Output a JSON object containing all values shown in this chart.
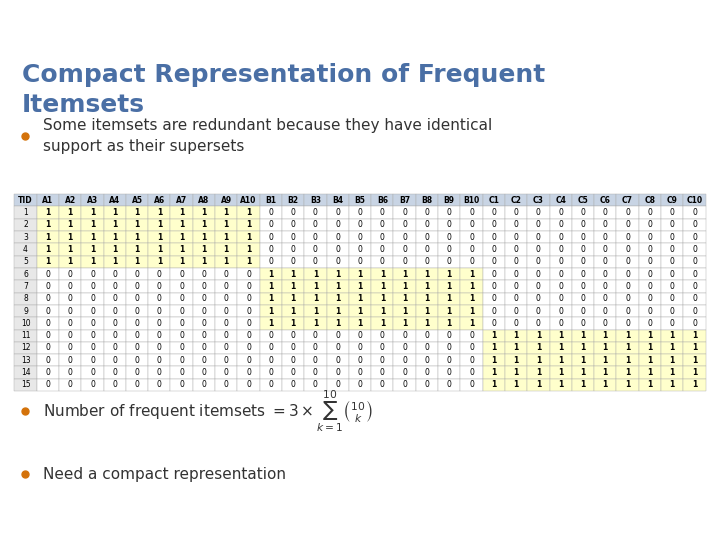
{
  "title": "Compact Representation of Frequent\nItemsets",
  "title_color": "#4a6fa5",
  "bg_color": "#f0f0f0",
  "slide_bg": "#ffffff",
  "header_bg": "#7a9cc4",
  "bullet1": "Some itemsets are redundant because they have identical\nsupport as their supersets",
  "bullet2": "Number of frequent itemsets",
  "bullet3": "Need a compact representation",
  "bullet_color": "#d4720a",
  "col_headers": [
    "TID",
    "A1",
    "A2",
    "A3",
    "A4",
    "A5",
    "A6",
    "A7",
    "A8",
    "A9",
    "A10",
    "B1",
    "B2",
    "B3",
    "B4",
    "B5",
    "B6",
    "B7",
    "B8",
    "B9",
    "B10",
    "C1",
    "C2",
    "C3",
    "C4",
    "C5",
    "C6",
    "C7",
    "C8",
    "C9",
    "C10"
  ],
  "table_data": [
    [
      1,
      1,
      1,
      1,
      1,
      1,
      1,
      1,
      1,
      1,
      1,
      0,
      0,
      0,
      0,
      0,
      0,
      0,
      0,
      0,
      0,
      0,
      0,
      0,
      0,
      0,
      0,
      0,
      0,
      0,
      0
    ],
    [
      2,
      1,
      1,
      1,
      1,
      1,
      1,
      1,
      1,
      1,
      1,
      0,
      0,
      0,
      0,
      0,
      0,
      0,
      0,
      0,
      0,
      0,
      0,
      0,
      0,
      0,
      0,
      0,
      0,
      0,
      0
    ],
    [
      3,
      1,
      1,
      1,
      1,
      1,
      1,
      1,
      1,
      1,
      1,
      0,
      0,
      0,
      0,
      0,
      0,
      0,
      0,
      0,
      0,
      0,
      0,
      0,
      0,
      0,
      0,
      0,
      0,
      0,
      0
    ],
    [
      4,
      1,
      1,
      1,
      1,
      1,
      1,
      1,
      1,
      1,
      1,
      0,
      0,
      0,
      0,
      0,
      0,
      0,
      0,
      0,
      0,
      0,
      0,
      0,
      0,
      0,
      0,
      0,
      0,
      0,
      0
    ],
    [
      5,
      1,
      1,
      1,
      1,
      1,
      1,
      1,
      1,
      1,
      1,
      0,
      0,
      0,
      0,
      0,
      0,
      0,
      0,
      0,
      0,
      0,
      0,
      0,
      0,
      0,
      0,
      0,
      0,
      0,
      0
    ],
    [
      6,
      0,
      0,
      0,
      0,
      0,
      0,
      0,
      0,
      0,
      0,
      1,
      1,
      1,
      1,
      1,
      1,
      1,
      1,
      1,
      1,
      0,
      0,
      0,
      0,
      0,
      0,
      0,
      0,
      0,
      0
    ],
    [
      7,
      0,
      0,
      0,
      0,
      0,
      0,
      0,
      0,
      0,
      0,
      1,
      1,
      1,
      1,
      1,
      1,
      1,
      1,
      1,
      1,
      0,
      0,
      0,
      0,
      0,
      0,
      0,
      0,
      0,
      0
    ],
    [
      8,
      0,
      0,
      0,
      0,
      0,
      0,
      0,
      0,
      0,
      0,
      1,
      1,
      1,
      1,
      1,
      1,
      1,
      1,
      1,
      1,
      0,
      0,
      0,
      0,
      0,
      0,
      0,
      0,
      0,
      0
    ],
    [
      9,
      0,
      0,
      0,
      0,
      0,
      0,
      0,
      0,
      0,
      0,
      1,
      1,
      1,
      1,
      1,
      1,
      1,
      1,
      1,
      1,
      0,
      0,
      0,
      0,
      0,
      0,
      0,
      0,
      0,
      0
    ],
    [
      10,
      0,
      0,
      0,
      0,
      0,
      0,
      0,
      0,
      0,
      0,
      1,
      1,
      1,
      1,
      1,
      1,
      1,
      1,
      1,
      1,
      0,
      0,
      0,
      0,
      0,
      0,
      0,
      0,
      0,
      0
    ],
    [
      11,
      0,
      0,
      0,
      0,
      0,
      0,
      0,
      0,
      0,
      0,
      0,
      0,
      0,
      0,
      0,
      0,
      0,
      0,
      0,
      0,
      1,
      1,
      1,
      1,
      1,
      1,
      1,
      1,
      1,
      1
    ],
    [
      12,
      0,
      0,
      0,
      0,
      0,
      0,
      0,
      0,
      0,
      0,
      0,
      0,
      0,
      0,
      0,
      0,
      0,
      0,
      0,
      0,
      1,
      1,
      1,
      1,
      1,
      1,
      1,
      1,
      1,
      1
    ],
    [
      13,
      0,
      0,
      0,
      0,
      0,
      0,
      0,
      0,
      0,
      0,
      0,
      0,
      0,
      0,
      0,
      0,
      0,
      0,
      0,
      0,
      1,
      1,
      1,
      1,
      1,
      1,
      1,
      1,
      1,
      1
    ],
    [
      14,
      0,
      0,
      0,
      0,
      0,
      0,
      0,
      0,
      0,
      0,
      0,
      0,
      0,
      0,
      0,
      0,
      0,
      0,
      0,
      0,
      1,
      1,
      1,
      1,
      1,
      1,
      1,
      1,
      1,
      1
    ],
    [
      15,
      0,
      0,
      0,
      0,
      0,
      0,
      0,
      0,
      0,
      0,
      0,
      0,
      0,
      0,
      0,
      0,
      0,
      0,
      0,
      0,
      1,
      1,
      1,
      1,
      1,
      1,
      1,
      1,
      1,
      1
    ]
  ],
  "highlight_A": "#ffffcc",
  "highlight_B": "#ffffcc",
  "highlight_C": "#ffffcc",
  "header_text_color": "#000000",
  "header_fill": "#d0d0d0",
  "row_alt": "#f9f9f9",
  "cell_border": "#aaaaaa",
  "table_font_size": 5.5,
  "title_fontsize": 18,
  "subtitle_fontsize": 11
}
